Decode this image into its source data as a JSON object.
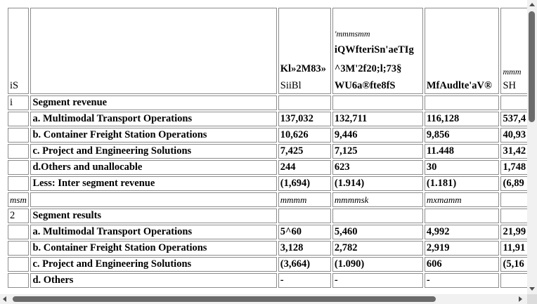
{
  "header": {
    "c0": "iS",
    "c2": [
      "Kl»2M83»",
      "SiiBl"
    ],
    "c3": [
      "'mmmsmm",
      "iQWfteriSn'aeTIg",
      "^3M'2f20;l;73§",
      "WU6a®fte8fS"
    ],
    "c4": "MfAudlte'aV®",
    "c5": [
      "mmm",
      "SH"
    ]
  },
  "rows": [
    {
      "n": "i",
      "label": "Segment revenue",
      "v": [
        "",
        "",
        "",
        ""
      ]
    },
    {
      "n": "",
      "label": "a. Multimodal Transport Operations",
      "v": [
        "137,032",
        "132,711",
        "116,128",
        "537,4"
      ]
    },
    {
      "n": "",
      "label": "b. Container Freight Station Operations",
      "v": [
        "10,626",
        "9,446",
        "9,856",
        "40,93"
      ]
    },
    {
      "n": "",
      "label": "c. Project and Engineering Solutions",
      "v": [
        "7,425",
        "7,125",
        "11.448",
        "31,42"
      ]
    },
    {
      "n": "",
      "label": "d.Others and unallocable",
      "v": [
        "244",
        "623",
        "30",
        "1,748"
      ]
    },
    {
      "n": "",
      "label": "Less: Inter segment revenue",
      "v": [
        "(1,694)",
        "(1.914)",
        "(1.181)",
        "(6,89"
      ]
    },
    {
      "n": "msm",
      "label": "",
      "v": [
        "mmmm",
        "mmmmsk",
        "mxmamm",
        ""
      ],
      "noise": true
    },
    {
      "n": "2",
      "label": "Segment results",
      "v": [
        "",
        "",
        "",
        ""
      ]
    },
    {
      "n": "",
      "label": "a. Multimodal Transport Operations",
      "v": [
        "5^60",
        "5,460",
        "4,992",
        "21,99"
      ]
    },
    {
      "n": "",
      "label": "b. Container Freight Station Operations",
      "v": [
        "3,128",
        "2,782",
        "2,919",
        "11,91"
      ]
    },
    {
      "n": "",
      "label": "c. Project and Engineering Solutions",
      "v": [
        "(3,664)",
        "(1.090)",
        "606",
        "(5,16"
      ]
    },
    {
      "n": "",
      "label": "d. Others",
      "v": [
        "-",
        "-",
        "-",
        ""
      ]
    }
  ]
}
